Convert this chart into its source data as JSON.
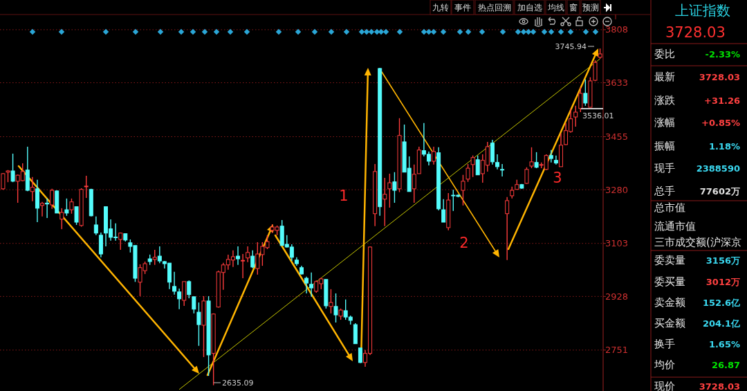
{
  "chart_data": [
    {
      "type": "candlestick",
      "title": null,
      "categories": [
        null,
        null,
        null,
        null,
        null,
        null,
        null,
        null,
        null,
        null,
        null,
        null,
        null,
        null,
        null,
        null,
        null,
        null,
        null,
        null,
        null,
        null,
        null,
        null,
        null,
        null,
        null,
        null,
        null,
        null,
        null,
        null,
        null,
        null,
        null,
        null,
        null,
        null,
        null,
        null,
        null,
        null,
        null,
        null,
        null,
        null,
        null,
        null,
        null,
        null,
        null,
        null,
        null,
        null,
        null,
        null,
        null,
        null,
        null,
        null,
        null,
        null,
        null,
        null,
        null,
        null,
        null,
        null,
        null,
        null,
        null,
        null,
        null,
        null,
        null,
        null,
        null,
        null,
        null,
        null,
        null,
        null,
        null,
        null,
        null,
        null,
        null,
        null,
        null,
        null,
        null,
        null,
        null,
        null,
        null,
        null,
        null,
        null,
        null,
        null,
        null,
        null,
        null,
        null,
        null,
        null,
        null,
        null,
        null,
        null,
        null,
        null,
        null,
        null,
        null,
        null,
        null,
        null,
        null,
        null,
        null,
        null,
        null
      ],
      "ohlc": [
        [
          3283,
          3335,
          3280,
          3333
        ],
        [
          3338,
          3345,
          3305,
          3342
        ],
        [
          3342,
          3399,
          3305,
          3308
        ],
        [
          3308,
          3330,
          3237,
          3328
        ],
        [
          3310,
          3367,
          3308,
          3340
        ],
        [
          3345,
          3422,
          3275,
          3278
        ],
        [
          3274,
          3322,
          3242,
          3288
        ],
        [
          3283,
          3313,
          3173,
          3219
        ],
        [
          3228,
          3240,
          3192,
          3235
        ],
        [
          3236,
          3251,
          3187,
          3233
        ],
        [
          3230,
          3283,
          3217,
          3278
        ],
        [
          3276,
          3278,
          3203,
          3203
        ],
        [
          3183,
          3219,
          3150,
          3205
        ],
        [
          3214,
          3251,
          3194,
          3203
        ],
        [
          3214,
          3251,
          3201,
          3240
        ],
        [
          3224,
          3224,
          3164,
          3173
        ],
        [
          3162,
          3285,
          3158,
          3281
        ],
        [
          3290,
          3326,
          3253,
          3292
        ],
        [
          3281,
          3283,
          3192,
          3194
        ],
        [
          3164,
          3192,
          3130,
          3137
        ],
        [
          3130,
          3139,
          3057,
          3068
        ],
        [
          3224,
          3224,
          3093,
          3137
        ],
        [
          3151,
          3182,
          3112,
          3123
        ],
        [
          3124,
          3169,
          3112,
          3123
        ],
        [
          3116,
          3139,
          3082,
          3137
        ],
        [
          3135,
          3135,
          3109,
          3114
        ],
        [
          3105,
          3116,
          3073,
          3093
        ],
        [
          3096,
          3096,
          2976,
          2988
        ],
        [
          2975,
          3034,
          2929,
          3023
        ],
        [
          3013,
          3043,
          3002,
          3036
        ],
        [
          3052,
          3066,
          3032,
          3043
        ],
        [
          3050,
          3082,
          3032,
          3057
        ],
        [
          3061,
          3093,
          3038,
          3045
        ],
        [
          3043,
          3045,
          3020,
          3036
        ],
        [
          3038,
          3038,
          2952,
          2975
        ],
        [
          2961,
          3009,
          2934,
          2945
        ],
        [
          2943,
          2954,
          2886,
          2920
        ],
        [
          2915,
          2977,
          2897,
          2977
        ],
        [
          2977,
          2981,
          2922,
          2934
        ],
        [
          2927,
          2927,
          2872,
          2886
        ],
        [
          2876,
          2908,
          2765,
          2835
        ],
        [
          2833,
          2929,
          2728,
          2913
        ],
        [
          2913,
          2929,
          2666,
          2735
        ],
        [
          2740,
          2872,
          2635.09,
          2870
        ],
        [
          2893,
          3013,
          2891,
          3009
        ],
        [
          3007,
          3039,
          2950,
          3032
        ],
        [
          3032,
          3066,
          3016,
          3050
        ],
        [
          3048,
          3080,
          3025,
          3059
        ],
        [
          3061,
          3093,
          3032,
          3052
        ],
        [
          3045,
          3068,
          2988,
          3047
        ],
        [
          3055,
          3093,
          3041,
          3073
        ],
        [
          3061,
          3080,
          3021,
          3025
        ],
        [
          3020,
          3107,
          3000,
          3068
        ],
        [
          3066,
          3107,
          3029,
          3093
        ],
        [
          3089,
          3130,
          3084,
          3109
        ],
        [
          3146,
          3166,
          3137,
          3157
        ],
        [
          3146,
          3162,
          3130,
          3157
        ],
        [
          3160,
          3180,
          3096,
          3096
        ],
        [
          3100,
          3130,
          3089,
          3091
        ],
        [
          3091,
          3100,
          3045,
          3057
        ],
        [
          3048,
          3057,
          3029,
          3036
        ],
        [
          3023,
          3029,
          3000,
          3002
        ],
        [
          2988,
          2993,
          2938,
          2972
        ],
        [
          2968,
          3007,
          2927,
          2956
        ],
        [
          2945,
          2981,
          2940,
          2977
        ],
        [
          2970,
          2990,
          2952,
          2986
        ],
        [
          2984,
          2984,
          2888,
          2897
        ],
        [
          2895,
          2952,
          2872,
          2908
        ],
        [
          2895,
          2938,
          2842,
          2867
        ],
        [
          2863,
          2888,
          2851,
          2883
        ],
        [
          2881,
          2918,
          2851,
          2860
        ],
        [
          2860,
          2865,
          2835,
          2849
        ],
        [
          2835,
          2840,
          2772,
          2772
        ],
        [
          2758,
          2758,
          2708,
          2710
        ],
        [
          2710,
          2751,
          2696,
          2740
        ],
        [
          2740,
          3093,
          2735,
          3091
        ],
        [
          3201,
          3365,
          3160,
          3340
        ],
        [
          3680,
          3682,
          3194,
          3224
        ],
        [
          3249,
          3319,
          3160,
          3265
        ],
        [
          3283,
          3333,
          3221,
          3303
        ],
        [
          3306,
          3338,
          3237,
          3278
        ],
        [
          3283,
          3516,
          3272,
          3459
        ],
        [
          3438,
          3495,
          3338,
          3338
        ],
        [
          3351,
          3390,
          3274,
          3274
        ],
        [
          3283,
          3363,
          3237,
          3331
        ],
        [
          3333,
          3422,
          3333,
          3411
        ],
        [
          3409,
          3500,
          3390,
          3397
        ],
        [
          3397,
          3406,
          3360,
          3374
        ],
        [
          3374,
          3422,
          3363,
          3406
        ],
        [
          3402,
          3420,
          3212,
          3217
        ],
        [
          3214,
          3249,
          3173,
          3173
        ],
        [
          3155,
          3269,
          3146,
          3246
        ],
        [
          3262,
          3280,
          3210,
          3260
        ],
        [
          3262,
          3265,
          3255,
          3258
        ],
        [
          3278,
          3329,
          3228,
          3308
        ],
        [
          3315,
          3365,
          3306,
          3351
        ],
        [
          3363,
          3393,
          3322,
          3386
        ],
        [
          3379,
          3393,
          3329,
          3329
        ],
        [
          3333,
          3397,
          3303,
          3377
        ],
        [
          3361,
          3438,
          3340,
          3422
        ],
        [
          3434,
          3445,
          3363,
          3372
        ],
        [
          3370,
          3397,
          3347,
          3356
        ],
        [
          3347,
          3365,
          3324,
          3346
        ],
        [
          3201,
          3256,
          3048,
          3244
        ],
        [
          3260,
          3290,
          3251,
          3278
        ],
        [
          3281,
          3313,
          3281,
          3297
        ],
        [
          3297,
          3299,
          3283,
          3285
        ],
        [
          3301,
          3354,
          3299,
          3347
        ],
        [
          3358,
          3420,
          3351,
          3372
        ],
        [
          3370,
          3404,
          3351,
          3354
        ],
        [
          3361,
          3370,
          3351,
          3363
        ],
        [
          3347,
          3397,
          3345,
          3393
        ],
        [
          3393,
          3411,
          3370,
          3383
        ],
        [
          3377,
          3393,
          3363,
          3368
        ],
        [
          3356,
          3466,
          3356,
          3427
        ],
        [
          3429,
          3500,
          3427,
          3475
        ],
        [
          3472,
          3548,
          3468,
          3514
        ],
        [
          3520,
          3557,
          3488,
          3536
        ],
        [
          3548,
          3618,
          3536.01,
          3598
        ],
        [
          3598,
          3644,
          3557,
          3566
        ],
        [
          3552,
          3651,
          3552,
          3639
        ],
        [
          3641,
          3707,
          3638,
          3700
        ],
        [
          3717,
          3745.94,
          3712,
          3728.03
        ]
      ],
      "series": [
        {
          "type": "line",
          "color": "#c8c800",
          "values": [
            null,
            null,
            null,
            null,
            null,
            null,
            null,
            null,
            null,
            null,
            null,
            null,
            null,
            null,
            null,
            null,
            null,
            null,
            null,
            null,
            null,
            null,
            null,
            null,
            null,
            null,
            null,
            null,
            null,
            null,
            null,
            null,
            null,
            null,
            null,
            null,
            2621,
            null,
            null,
            null,
            null,
            null,
            null,
            null,
            null,
            null,
            null,
            null,
            null,
            null,
            null,
            null,
            null,
            null,
            null,
            null,
            null,
            null,
            null,
            null,
            null,
            null,
            null,
            null,
            null,
            null,
            null,
            null,
            null,
            null,
            null,
            null,
            null,
            null,
            null,
            null,
            null,
            null,
            null,
            null,
            null,
            null,
            null,
            null,
            null,
            null,
            null,
            null,
            null,
            null,
            null,
            null,
            null,
            null,
            null,
            null,
            null,
            null,
            null,
            null,
            null,
            null,
            null,
            null,
            null,
            null,
            null,
            null,
            null,
            null,
            null,
            null,
            null,
            null,
            null,
            null,
            null,
            null,
            null,
            null,
            null,
            null,
            3712
          ]
        }
      ],
      "ylim": [
        2616,
        3842
      ],
      "yticks": [
        3808,
        3633,
        3455,
        3280,
        3103,
        2928,
        2751
      ],
      "grid": "y",
      "tick_labels": "y",
      "annotations": [
        "1",
        "2",
        "3",
        "九转",
        "事件",
        "热点回溯",
        "加自选",
        "均线",
        "窗",
        "预测",
        "2635.09",
        "3745.94",
        "3536.01"
      ]
    },
    {
      "type": "other",
      "title": "上证指数",
      "subtitle": "3728.03",
      "annotations": [
        "委比",
        "-2.33%",
        "最新",
        "3728.03",
        "涨跌",
        "+31.26",
        "涨幅",
        "+0.85%",
        "振幅",
        "1.18%",
        "现手",
        "2388590",
        "总手",
        "77602万",
        "总市值",
        "流通市值",
        "三市成交额(沪深京",
        "委卖量",
        "3156万",
        "委买量",
        "3012万",
        "卖金额",
        "152.6亿",
        "买金额",
        "204.1亿",
        "换手",
        "1.65%",
        "均价",
        "26.87",
        "现价",
        "3728.03"
      ]
    }
  ]
}
